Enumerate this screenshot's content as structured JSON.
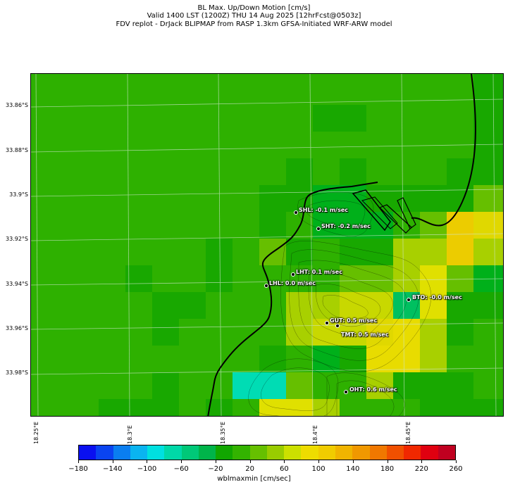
{
  "title": {
    "line1": "BL Max. Up/Down Motion [cm/s]",
    "line2": "Valid 1400 LST (1200Z) THU 14 Aug 2025 [12hrFcst@0503z]",
    "line3": "FDV replot - DrJack BLIPMAP from RASP 1.3km GFSA-Initiated WRF-ARW model"
  },
  "lat_labels": [
    "33.86°S",
    "33.88°S",
    "33.9°S",
    "33.92°S",
    "33.94°S",
    "33.96°S",
    "33.98°S"
  ],
  "lon_labels": [
    "18.25°E",
    "18.3°E",
    "18.35°E",
    "18.4°E",
    "18.45°E"
  ],
  "sites": [
    {
      "id": "SHL",
      "label": "SHL: -0.1 m/sec"
    },
    {
      "id": "SHT",
      "label": "SHT: -0.2 m/sec"
    },
    {
      "id": "LHT",
      "label": "LHT: 0.1 m/sec"
    },
    {
      "id": "LHL",
      "label": "LHL: 0.0 m/sec"
    },
    {
      "id": "BTO",
      "label": "BTO: -0.0 m/sec"
    },
    {
      "id": "GUT",
      "label": "GUT: 0.5 m/sec"
    },
    {
      "id": "TMT",
      "label": "TMT: 0.5 m/sec"
    },
    {
      "id": "OHT",
      "label": "OHT: 0.6 m/sec"
    }
  ],
  "colorbar": {
    "label": "wblmaxmin [cm/sec]",
    "ticks": [
      "−180",
      "−140",
      "−100",
      "−60",
      "−20",
      "20",
      "60",
      "100",
      "140",
      "180",
      "220",
      "260"
    ],
    "colors": [
      "#0a10f0",
      "#0a44f0",
      "#0a7ef0",
      "#0ab4f0",
      "#00e0e0",
      "#00d8a8",
      "#00c878",
      "#00b44a",
      "#11a600",
      "#33b300",
      "#66c000",
      "#99cc00",
      "#cce000",
      "#eedc00",
      "#f0cc00",
      "#f0b400",
      "#f09800",
      "#f07800",
      "#f05000",
      "#f02800",
      "#e00010",
      "#c00020"
    ]
  },
  "legend_colors": {
    "base": "#2eb100",
    "green_dark": "#00b01a",
    "green_mid": "#18a800",
    "lime": "#66bf00",
    "yellow_green": "#a8d000",
    "yellow": "#e0e000",
    "gold": "#eccc00",
    "cyan": "#00dcb4",
    "teal_green": "#00c060"
  }
}
